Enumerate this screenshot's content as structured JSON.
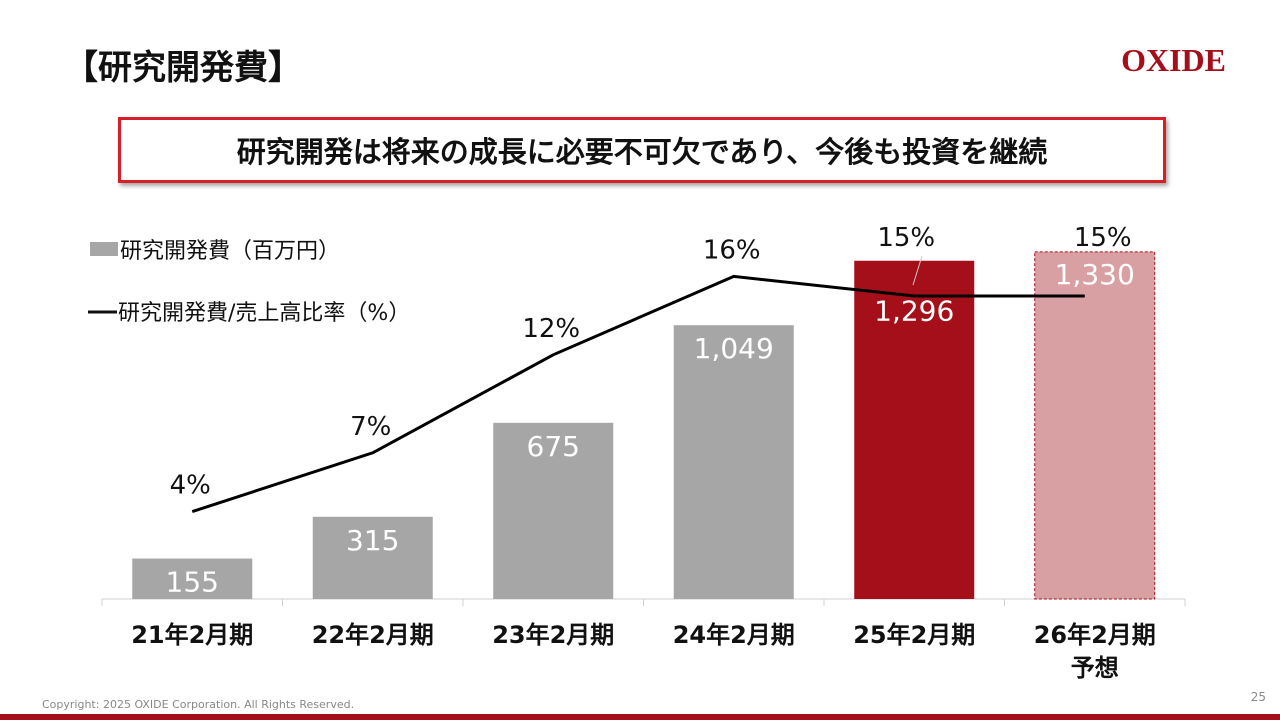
{
  "title": "【研究開発費】",
  "logo": "OXIDE",
  "banner": "研究開発は将来の成長に必要不可欠であり、今後も投資を継続",
  "footer": {
    "copyright": "Copyright: 2025 OXIDE Corporation. All Rights Reserved.",
    "page": "25"
  },
  "colors": {
    "bar_actual": "#a6a6a6",
    "bar_current": "#a50f1a",
    "bar_forecast": "#d9a0a3",
    "line": "#000000",
    "accent": "#d81e28"
  },
  "chart_data": {
    "type": "bar+line",
    "categories": [
      [
        "21年2月期"
      ],
      [
        "22年2月期"
      ],
      [
        "23年2月期"
      ],
      [
        "24年2月期"
      ],
      [
        "25年2月期"
      ],
      [
        "26年2月期",
        "予想"
      ]
    ],
    "series": [
      {
        "name": "研究開発費（百万円）",
        "type": "bar",
        "values": [
          155,
          315,
          675,
          1049,
          1296,
          1330
        ],
        "labels": [
          "155",
          "315",
          "675",
          "1,049",
          "1,296",
          "1,330"
        ]
      },
      {
        "name": "研究開発費/売上高比率（%）",
        "type": "line",
        "values": [
          4,
          7,
          12,
          16,
          15,
          15
        ],
        "labels": [
          "4%",
          "7%",
          "12%",
          "16%",
          "15%",
          "15%"
        ]
      }
    ],
    "legend": "top-left",
    "grid": false
  }
}
